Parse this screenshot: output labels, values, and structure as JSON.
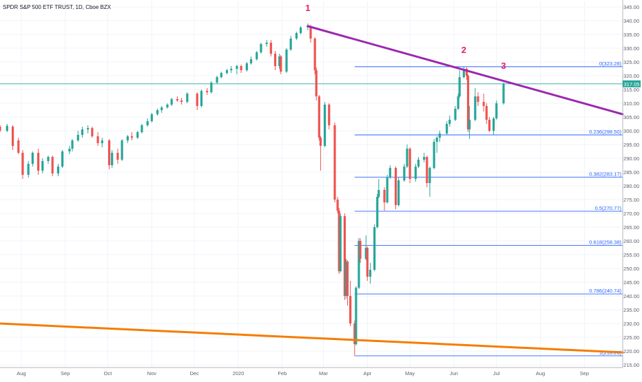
{
  "chart_title": "SPDR S&P 500 ETF TRUST, 1D, Cboe BZX",
  "colors": {
    "up": "#26a69a",
    "down": "#ef5350",
    "fib": "#2962ff",
    "upper_trend": "#9c27b0",
    "lower_trend": "#f57c00",
    "last_price_line": "#26a69a",
    "marker": "#e91e63",
    "axis_text": "#5d606b",
    "grid": "#f0f3fa"
  },
  "chart_data": {
    "type": "candlestick",
    "ylim": [
      214,
      347
    ],
    "y_ticks": [
      215,
      220,
      225,
      230,
      235,
      240,
      245,
      250,
      255,
      260,
      265,
      270,
      275,
      280,
      285,
      290,
      295,
      300,
      305,
      310,
      315,
      320,
      325,
      330,
      335,
      340,
      345
    ],
    "x_ticks": [
      "Aug",
      "Sep",
      "Oct",
      "Nov",
      "Dec",
      "2020",
      "Feb",
      "Mar",
      "Apr",
      "May",
      "Jun",
      "Jul",
      "Aug",
      "Sep"
    ],
    "x_tick_dates": [
      "2019-08-01",
      "2019-09-01",
      "2019-10-01",
      "2019-11-01",
      "2019-12-01",
      "2020-01-01",
      "2020-02-01",
      "2020-03-01",
      "2020-04-01",
      "2020-05-01",
      "2020-06-01",
      "2020-07-01",
      "2020-08-01",
      "2020-09-01"
    ],
    "x_range": [
      "2019-07-17",
      "2020-09-28"
    ],
    "last_price_label": "317.05",
    "last_price": 317.05,
    "fib_levels": [
      {
        "ratio": "0",
        "value": 323.28,
        "label": "0(323.28)"
      },
      {
        "ratio": "0.236",
        "value": 298.5,
        "label": "0.236(298.50)"
      },
      {
        "ratio": "0.382",
        "value": 283.17,
        "label": "0.382(283.17)"
      },
      {
        "ratio": "0.5",
        "value": 270.77,
        "label": "0.5(270.77)"
      },
      {
        "ratio": "0.618",
        "value": 258.38,
        "label": "0.618(258.38)"
      },
      {
        "ratio": "0.786",
        "value": 240.74,
        "label": "0.786(240.74)"
      },
      {
        "ratio": "1",
        "value": 218.26,
        "label": "1(218.26)"
      }
    ],
    "fib_start_date": "2020-03-23",
    "trendlines": [
      {
        "name": "upper",
        "start": [
          "2020-02-19",
          338.0
        ],
        "end": [
          "2020-09-28",
          306.0
        ]
      },
      {
        "name": "lower",
        "start": [
          "2019-07-17",
          230.0
        ],
        "end": [
          "2020-09-28",
          219.5
        ]
      }
    ],
    "markers": [
      {
        "label": "1",
        "date": "2020-02-19",
        "value": 343.5
      },
      {
        "label": "2",
        "date": "2020-06-08",
        "value": 328.2
      },
      {
        "label": "3",
        "date": "2020-07-06",
        "value": 322.5
      }
    ],
    "candles": [
      [
        "2019-07-17",
        301.5,
        302.0,
        299.5,
        300.0
      ],
      [
        "2019-07-22",
        300.0,
        302.5,
        299.5,
        301.8
      ],
      [
        "2019-07-26",
        301.5,
        302.0,
        293.0,
        294.5
      ],
      [
        "2019-07-30",
        296.5,
        297.5,
        291.5,
        292.0
      ],
      [
        "2019-08-02",
        292.0,
        293.0,
        282.5,
        284.0
      ],
      [
        "2019-08-06",
        284.0,
        289.0,
        283.0,
        288.0
      ],
      [
        "2019-08-09",
        288.0,
        292.5,
        287.0,
        292.0
      ],
      [
        "2019-08-13",
        292.0,
        293.5,
        284.0,
        285.5
      ],
      [
        "2019-08-16",
        285.5,
        290.0,
        284.5,
        289.0
      ],
      [
        "2019-08-20",
        289.0,
        291.0,
        288.0,
        290.5
      ],
      [
        "2019-08-23",
        290.5,
        291.0,
        283.5,
        284.5
      ],
      [
        "2019-08-27",
        284.5,
        288.0,
        283.5,
        287.0
      ],
      [
        "2019-08-30",
        287.0,
        293.0,
        286.5,
        292.5
      ],
      [
        "2019-09-04",
        292.5,
        294.5,
        291.5,
        293.5
      ],
      [
        "2019-09-06",
        293.5,
        297.0,
        292.5,
        296.5
      ],
      [
        "2019-09-10",
        296.5,
        300.0,
        296.0,
        298.5
      ],
      [
        "2019-09-13",
        298.5,
        301.5,
        297.5,
        300.5
      ],
      [
        "2019-09-17",
        300.5,
        302.0,
        299.0,
        301.0
      ],
      [
        "2019-09-20",
        301.0,
        301.5,
        297.5,
        298.0
      ],
      [
        "2019-09-24",
        298.0,
        299.5,
        294.5,
        295.5
      ],
      [
        "2019-09-27",
        295.5,
        297.5,
        294.0,
        296.5
      ],
      [
        "2019-10-02",
        296.5,
        297.0,
        286.0,
        287.5
      ],
      [
        "2019-10-04",
        287.5,
        293.0,
        286.5,
        292.0
      ],
      [
        "2019-10-08",
        292.0,
        293.5,
        288.0,
        289.5
      ],
      [
        "2019-10-11",
        289.5,
        297.0,
        289.0,
        296.5
      ],
      [
        "2019-10-15",
        296.5,
        298.5,
        295.5,
        298.0
      ],
      [
        "2019-10-18",
        298.0,
        299.5,
        296.5,
        297.5
      ],
      [
        "2019-10-22",
        297.5,
        300.0,
        297.0,
        299.5
      ],
      [
        "2019-10-25",
        299.5,
        302.5,
        299.0,
        302.0
      ],
      [
        "2019-10-29",
        302.0,
        304.5,
        301.5,
        303.5
      ],
      [
        "2019-11-01",
        303.5,
        306.5,
        303.0,
        306.0
      ],
      [
        "2019-11-05",
        306.0,
        308.0,
        305.5,
        307.5
      ],
      [
        "2019-11-08",
        307.5,
        309.0,
        306.5,
        308.5
      ],
      [
        "2019-11-12",
        308.5,
        310.0,
        308.0,
        309.5
      ],
      [
        "2019-11-15",
        309.5,
        312.0,
        309.0,
        311.5
      ],
      [
        "2019-11-19",
        311.5,
        312.5,
        310.5,
        311.0
      ],
      [
        "2019-11-22",
        311.0,
        312.0,
        309.5,
        310.5
      ],
      [
        "2019-11-26",
        310.5,
        314.0,
        310.0,
        313.5
      ],
      [
        "2019-12-03",
        313.5,
        314.0,
        307.5,
        309.0
      ],
      [
        "2019-12-06",
        309.0,
        315.0,
        308.5,
        314.5
      ],
      [
        "2019-12-10",
        314.5,
        315.5,
        313.0,
        314.0
      ],
      [
        "2019-12-13",
        314.0,
        318.0,
        313.5,
        317.5
      ],
      [
        "2019-12-17",
        317.5,
        320.0,
        317.0,
        319.5
      ],
      [
        "2019-12-20",
        319.5,
        321.5,
        319.0,
        321.0
      ],
      [
        "2019-12-24",
        321.0,
        322.5,
        320.5,
        322.0
      ],
      [
        "2019-12-27",
        322.0,
        323.5,
        321.0,
        322.5
      ],
      [
        "2019-12-31",
        322.5,
        324.0,
        320.5,
        323.5
      ],
      [
        "2020-01-03",
        323.5,
        324.0,
        321.0,
        322.0
      ],
      [
        "2020-01-07",
        322.0,
        325.0,
        321.5,
        324.5
      ],
      [
        "2020-01-10",
        324.5,
        327.0,
        324.0,
        326.0
      ],
      [
        "2020-01-14",
        326.0,
        329.0,
        325.5,
        328.5
      ],
      [
        "2020-01-17",
        328.5,
        332.0,
        328.0,
        331.5
      ],
      [
        "2020-01-21",
        331.5,
        333.0,
        330.5,
        332.0
      ],
      [
        "2020-01-24",
        332.0,
        333.0,
        327.0,
        328.0
      ],
      [
        "2020-01-27",
        328.0,
        329.0,
        322.0,
        323.5
      ],
      [
        "2020-01-30",
        323.5,
        328.0,
        322.5,
        327.0
      ],
      [
        "2020-01-31",
        327.0,
        327.5,
        320.5,
        321.5
      ],
      [
        "2020-02-04",
        321.5,
        330.0,
        321.0,
        329.5
      ],
      [
        "2020-02-07",
        329.5,
        334.5,
        329.0,
        333.5
      ],
      [
        "2020-02-11",
        333.5,
        336.0,
        333.0,
        335.5
      ],
      [
        "2020-02-14",
        335.5,
        338.0,
        335.0,
        337.5
      ],
      [
        "2020-02-19",
        337.5,
        339.0,
        336.5,
        338.0
      ],
      [
        "2020-02-21",
        338.0,
        338.5,
        332.0,
        333.5
      ],
      [
        "2020-02-24",
        333.5,
        334.0,
        320.5,
        322.0
      ],
      [
        "2020-02-25",
        322.0,
        323.0,
        311.0,
        312.5
      ],
      [
        "2020-02-27",
        312.5,
        313.0,
        296.5,
        297.5
      ],
      [
        "2020-02-28",
        297.5,
        298.0,
        285.5,
        294.5
      ],
      [
        "2020-03-02",
        294.5,
        310.5,
        294.0,
        309.5
      ],
      [
        "2020-03-05",
        309.5,
        310.0,
        300.5,
        302.0
      ],
      [
        "2020-03-09",
        302.0,
        303.0,
        274.0,
        275.0
      ],
      [
        "2020-03-11",
        275.0,
        276.0,
        270.0,
        271.0
      ],
      [
        "2020-03-12",
        271.0,
        272.0,
        248.0,
        249.0
      ],
      [
        "2020-03-13",
        249.0,
        270.0,
        248.5,
        269.0
      ],
      [
        "2020-03-16",
        269.0,
        270.0,
        238.5,
        240.0
      ],
      [
        "2020-03-17",
        240.0,
        253.5,
        239.0,
        252.5
      ],
      [
        "2020-03-18",
        252.5,
        253.0,
        236.5,
        240.0
      ],
      [
        "2020-03-20",
        240.0,
        245.5,
        229.0,
        230.0
      ],
      [
        "2020-03-23",
        230.0,
        231.0,
        218.3,
        222.5
      ],
      [
        "2020-03-24",
        222.5,
        243.5,
        222.0,
        243.0
      ],
      [
        "2020-03-26",
        243.0,
        261.0,
        242.5,
        260.0
      ],
      [
        "2020-03-27",
        260.0,
        261.0,
        252.0,
        253.5
      ],
      [
        "2020-03-31",
        253.5,
        262.0,
        253.0,
        257.5
      ],
      [
        "2020-04-01",
        257.5,
        258.0,
        245.5,
        247.0
      ],
      [
        "2020-04-03",
        247.0,
        252.0,
        244.5,
        249.5
      ],
      [
        "2020-04-06",
        249.5,
        266.0,
        249.0,
        265.0
      ],
      [
        "2020-04-08",
        265.0,
        277.0,
        264.5,
        276.0
      ],
      [
        "2020-04-09",
        276.0,
        282.5,
        275.5,
        278.5
      ],
      [
        "2020-04-13",
        278.5,
        279.5,
        271.0,
        274.0
      ],
      [
        "2020-04-15",
        274.0,
        284.0,
        273.5,
        283.0
      ],
      [
        "2020-04-17",
        283.0,
        287.5,
        282.5,
        286.5
      ],
      [
        "2020-04-21",
        286.5,
        287.0,
        271.5,
        273.0
      ],
      [
        "2020-04-23",
        273.0,
        283.0,
        272.5,
        282.0
      ],
      [
        "2020-04-27",
        282.0,
        288.0,
        281.5,
        287.0
      ],
      [
        "2020-04-29",
        287.0,
        295.0,
        286.5,
        293.5
      ],
      [
        "2020-05-01",
        293.5,
        294.0,
        281.0,
        282.5
      ],
      [
        "2020-05-05",
        282.5,
        288.0,
        281.5,
        287.0
      ],
      [
        "2020-05-07",
        287.0,
        290.5,
        286.5,
        289.5
      ],
      [
        "2020-05-11",
        289.5,
        292.0,
        288.5,
        290.5
      ],
      [
        "2020-05-13",
        290.5,
        291.0,
        279.5,
        281.0
      ],
      [
        "2020-05-15",
        281.0,
        287.0,
        276.0,
        286.5
      ],
      [
        "2020-05-18",
        286.5,
        297.0,
        286.0,
        296.0
      ],
      [
        "2020-05-20",
        296.0,
        298.0,
        292.0,
        297.5
      ],
      [
        "2020-05-22",
        297.5,
        300.0,
        296.0,
        299.0
      ],
      [
        "2020-05-27",
        299.0,
        303.5,
        298.5,
        302.5
      ],
      [
        "2020-05-29",
        302.5,
        305.5,
        301.5,
        304.0
      ],
      [
        "2020-06-02",
        304.0,
        309.0,
        303.5,
        308.0
      ],
      [
        "2020-06-04",
        308.0,
        313.5,
        307.5,
        312.5
      ],
      [
        "2020-06-05",
        312.5,
        322.0,
        312.0,
        319.5
      ],
      [
        "2020-06-08",
        319.5,
        323.3,
        319.0,
        322.5
      ],
      [
        "2020-06-10",
        322.5,
        323.0,
        318.5,
        320.0
      ],
      [
        "2020-06-11",
        320.0,
        320.5,
        299.5,
        300.5
      ],
      [
        "2020-06-12",
        300.5,
        309.0,
        297.0,
        304.0
      ],
      [
        "2020-06-16",
        304.0,
        315.5,
        303.5,
        312.5
      ],
      [
        "2020-06-18",
        312.5,
        314.0,
        309.0,
        310.5
      ],
      [
        "2020-06-22",
        310.5,
        313.5,
        307.0,
        309.0
      ],
      [
        "2020-06-24",
        309.0,
        310.0,
        302.5,
        304.0
      ],
      [
        "2020-06-26",
        304.0,
        305.0,
        299.5,
        300.0
      ],
      [
        "2020-06-29",
        300.0,
        305.0,
        298.5,
        304.5
      ],
      [
        "2020-07-01",
        304.5,
        311.0,
        304.0,
        310.0
      ],
      [
        "2020-07-06",
        310.0,
        317.5,
        309.5,
        317.0
      ]
    ]
  }
}
